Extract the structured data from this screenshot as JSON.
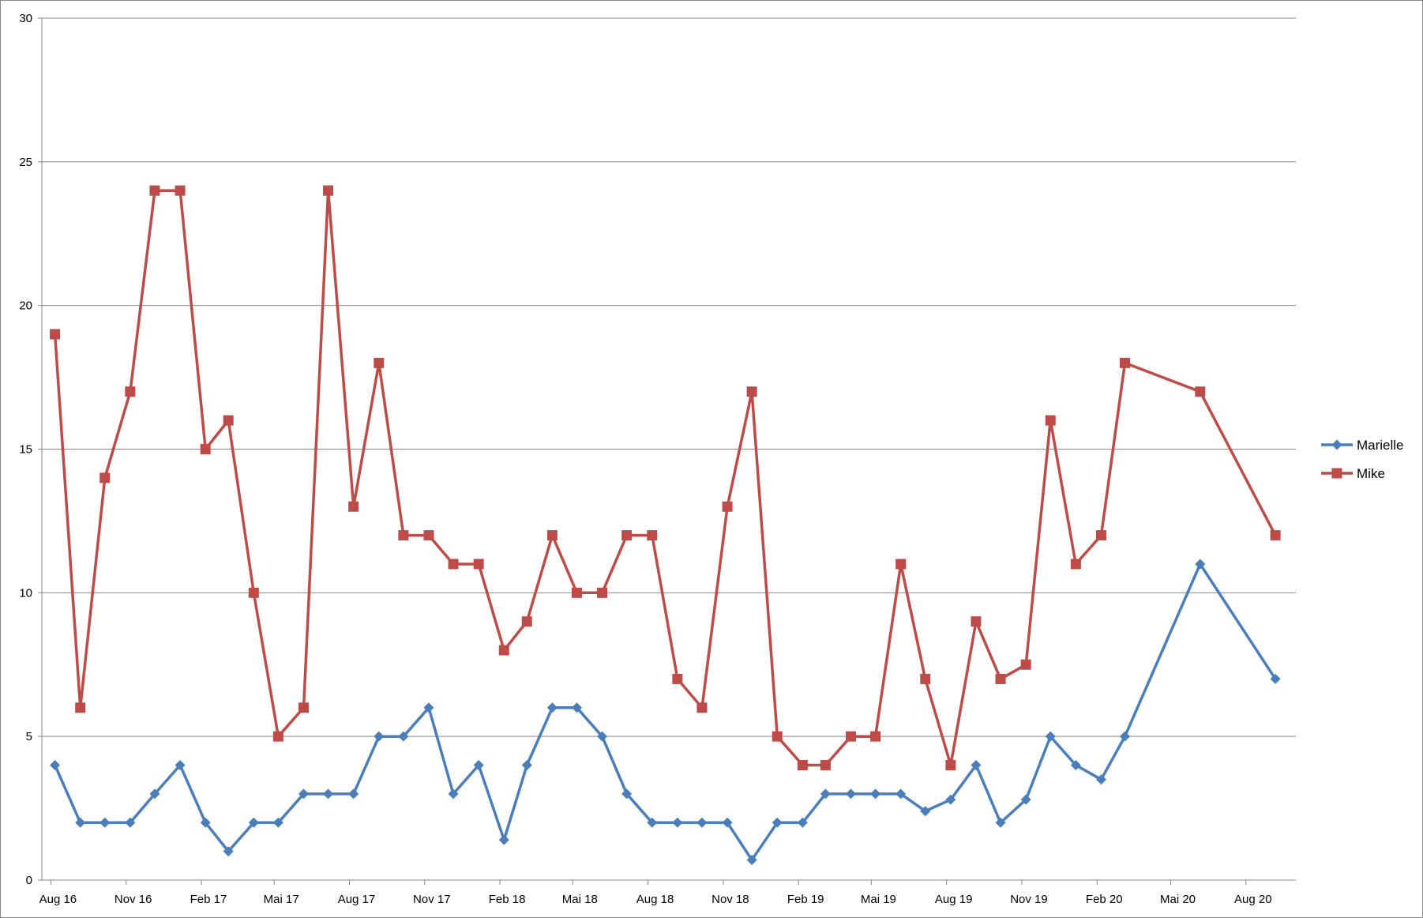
{
  "chart_data": {
    "type": "line",
    "ylim": [
      0,
      30
    ],
    "y_ticks": [
      "0",
      "5",
      "10",
      "15",
      "20",
      "25",
      "30"
    ],
    "x_tick_labels": [
      "Aug 16",
      "Nov 16",
      "Feb 17",
      "Mai 17",
      "Aug 17",
      "Nov 17",
      "Feb 18",
      "Mai 18",
      "Aug 18",
      "Nov 18",
      "Feb 19",
      "Mai 19",
      "Aug 19",
      "Nov 19",
      "Feb 20",
      "Mai 20",
      "Aug 20"
    ],
    "x_tick_dates": [
      "2016-08-01",
      "2016-11-01",
      "2017-02-01",
      "2017-05-01",
      "2017-08-01",
      "2017-11-01",
      "2018-02-01",
      "2018-05-01",
      "2018-08-01",
      "2018-11-01",
      "2019-02-01",
      "2019-05-01",
      "2019-08-01",
      "2019-11-01",
      "2020-02-01",
      "2020-05-01",
      "2020-08-01"
    ],
    "x_range": [
      "2016-07-21",
      "2020-10-01"
    ],
    "grid": true,
    "legend_position": "right",
    "x": [
      "2016-08-06",
      "2016-09-06",
      "2016-10-06",
      "2016-11-06",
      "2016-12-06",
      "2017-01-06",
      "2017-02-06",
      "2017-03-06",
      "2017-04-06",
      "2017-05-06",
      "2017-06-06",
      "2017-07-06",
      "2017-08-06",
      "2017-09-06",
      "2017-10-06",
      "2017-11-06",
      "2017-12-06",
      "2018-01-06",
      "2018-02-06",
      "2018-03-06",
      "2018-04-06",
      "2018-05-06",
      "2018-06-06",
      "2018-07-06",
      "2018-08-06",
      "2018-09-06",
      "2018-10-06",
      "2018-11-06",
      "2018-12-06",
      "2019-01-06",
      "2019-02-06",
      "2019-03-06",
      "2019-04-06",
      "2019-05-06",
      "2019-06-06",
      "2019-07-06",
      "2019-08-06",
      "2019-09-06",
      "2019-10-06",
      "2019-11-06",
      "2019-12-06",
      "2020-01-06",
      "2020-02-06",
      "2020-03-06",
      "2020-06-06",
      "2020-09-06"
    ],
    "series": [
      {
        "name": "Marielle",
        "color": "#4a7ebb",
        "marker": "diamond",
        "values": [
          4,
          2,
          2,
          2,
          3,
          4,
          2,
          1,
          2,
          2,
          3,
          3,
          3,
          5,
          5,
          6,
          3,
          4,
          1.4,
          4,
          6,
          6,
          5,
          3,
          2,
          2,
          2,
          2,
          0.7,
          2,
          2,
          3,
          3,
          3,
          3,
          2.4,
          2.8,
          4,
          2,
          2.8,
          5,
          4,
          3.5,
          5,
          11,
          7
        ]
      },
      {
        "name": "Mike",
        "color": "#be4b48",
        "marker": "square",
        "values": [
          19,
          6,
          14,
          17,
          24,
          24,
          15,
          16,
          10,
          5,
          6,
          24,
          13,
          18,
          12,
          12,
          11,
          11,
          8,
          9,
          12,
          10,
          10,
          12,
          12,
          7,
          6,
          13,
          17,
          5,
          4,
          4,
          5,
          5,
          11,
          7,
          4,
          9,
          7,
          7.5,
          16,
          11,
          12,
          18,
          17,
          12
        ]
      }
    ]
  }
}
